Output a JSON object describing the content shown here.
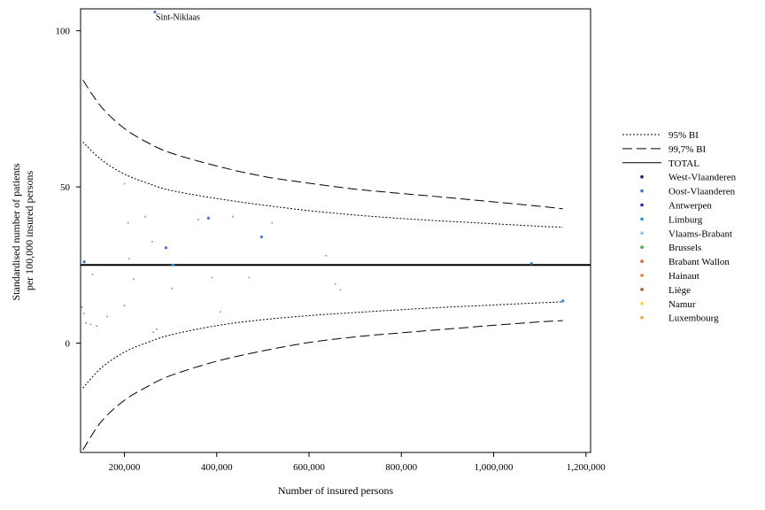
{
  "chart_data": {
    "type": "scatter",
    "title": "",
    "xlabel": "Number of insured persons",
    "ylabel": "Standardised number of patients per 100,000 insured persons",
    "ylabel_lines": [
      "Standardised number of patients",
      "per 100,000 insured persons"
    ],
    "xlim": [
      105000,
      1210000
    ],
    "ylim": [
      -35,
      107
    ],
    "x_ticks": [
      200000,
      400000,
      600000,
      800000,
      1000000,
      1200000
    ],
    "x_tick_labels": [
      "200,000",
      "400,000",
      "600,000",
      "800,000",
      "1,000,000",
      "1,200,000"
    ],
    "y_ticks": [
      0,
      50,
      100
    ],
    "y_tick_labels": [
      "0",
      "50",
      "100"
    ],
    "grid": false,
    "legend_position": "right",
    "total": 25,
    "funnel_x": [
      110000,
      150000,
      200000,
      250000,
      300000,
      400000,
      500000,
      600000,
      700000,
      800000,
      900000,
      1000000,
      1100000,
      1150000
    ],
    "series": [
      {
        "name": "95% BI",
        "style": "dotted",
        "kind": "limit",
        "upper": [
          64.4,
          58.7,
          54.1,
          51.2,
          48.9,
          46.3,
          44.2,
          42.4,
          41.0,
          39.9,
          39.0,
          38.2,
          37.4,
          37.1
        ],
        "lower": [
          -14.4,
          -7.9,
          -2.9,
          0.2,
          2.6,
          5.6,
          7.5,
          8.8,
          9.8,
          10.7,
          11.5,
          12.2,
          12.9,
          13.2
        ]
      },
      {
        "name": "99,7% BI",
        "style": "dashed",
        "kind": "limit",
        "upper": [
          84.2,
          75.6,
          68.7,
          64.2,
          60.9,
          56.7,
          53.4,
          51.2,
          49.3,
          47.9,
          46.6,
          45.2,
          43.8,
          43.0
        ],
        "lower": [
          -34.2,
          -25.1,
          -18.3,
          -13.9,
          -10.4,
          -5.8,
          -2.5,
          0.2,
          2.0,
          3.3,
          4.5,
          5.7,
          6.8,
          7.2
        ]
      },
      {
        "name": "TOTAL",
        "style": "solid",
        "kind": "total"
      },
      {
        "name": "West-Vlaanderen",
        "color": "#1a1a6e",
        "kind": "region",
        "points": []
      },
      {
        "name": "Oost-Vlaanderen",
        "color": "#4a6fd6",
        "kind": "region",
        "points": [
          [
            266000,
            106
          ],
          [
            113000,
            26
          ],
          [
            290000,
            30.5
          ],
          [
            497000,
            34
          ],
          [
            382000,
            40
          ]
        ]
      },
      {
        "name": "Antwerpen",
        "color": "#1f1fd6",
        "kind": "region",
        "points": []
      },
      {
        "name": "Limburg",
        "color": "#2e8fd8",
        "kind": "region",
        "points": [
          [
            305000,
            25
          ],
          [
            1150000,
            13.5
          ],
          [
            1082000,
            25.5
          ]
        ]
      },
      {
        "name": "Vlaams-Brabant",
        "color": "#86c6ea",
        "kind": "region",
        "points": []
      },
      {
        "name": "Brussels",
        "color": "#3cb043",
        "kind": "region",
        "points": []
      },
      {
        "name": "Brabant Wallon",
        "color": "#d2642b",
        "kind": "region",
        "points": []
      },
      {
        "name": "Hainaut",
        "color": "#f07f19",
        "kind": "region",
        "points": []
      },
      {
        "name": "Liège",
        "color": "#b5473c",
        "kind": "region",
        "points": []
      },
      {
        "name": "Namur",
        "color": "#ffd700",
        "kind": "region",
        "points": []
      },
      {
        "name": "Luxembourg",
        "color": "#f5a623",
        "kind": "region",
        "points": []
      }
    ],
    "grey_points": [
      [
        108000,
        11.5
      ],
      [
        112000,
        9.5
      ],
      [
        117000,
        6.5
      ],
      [
        127000,
        6
      ],
      [
        140000,
        5.5
      ],
      [
        163000,
        8.5
      ],
      [
        131000,
        22
      ],
      [
        200000,
        51
      ],
      [
        208000,
        38.5
      ],
      [
        210000,
        27
      ],
      [
        220000,
        20.5
      ],
      [
        245000,
        40.5
      ],
      [
        260000,
        32.5
      ],
      [
        263000,
        3.5
      ],
      [
        270000,
        4.5
      ],
      [
        200000,
        12
      ],
      [
        303000,
        17.5
      ],
      [
        360000,
        39.5
      ],
      [
        390000,
        21
      ],
      [
        408000,
        10
      ],
      [
        435000,
        40.5
      ],
      [
        470000,
        21
      ],
      [
        520000,
        38.5
      ],
      [
        637000,
        28
      ],
      [
        657000,
        19
      ],
      [
        668000,
        17
      ]
    ],
    "annotations": [
      {
        "text": "Sint-Niklaas",
        "x": 266000,
        "y": 106
      }
    ]
  }
}
